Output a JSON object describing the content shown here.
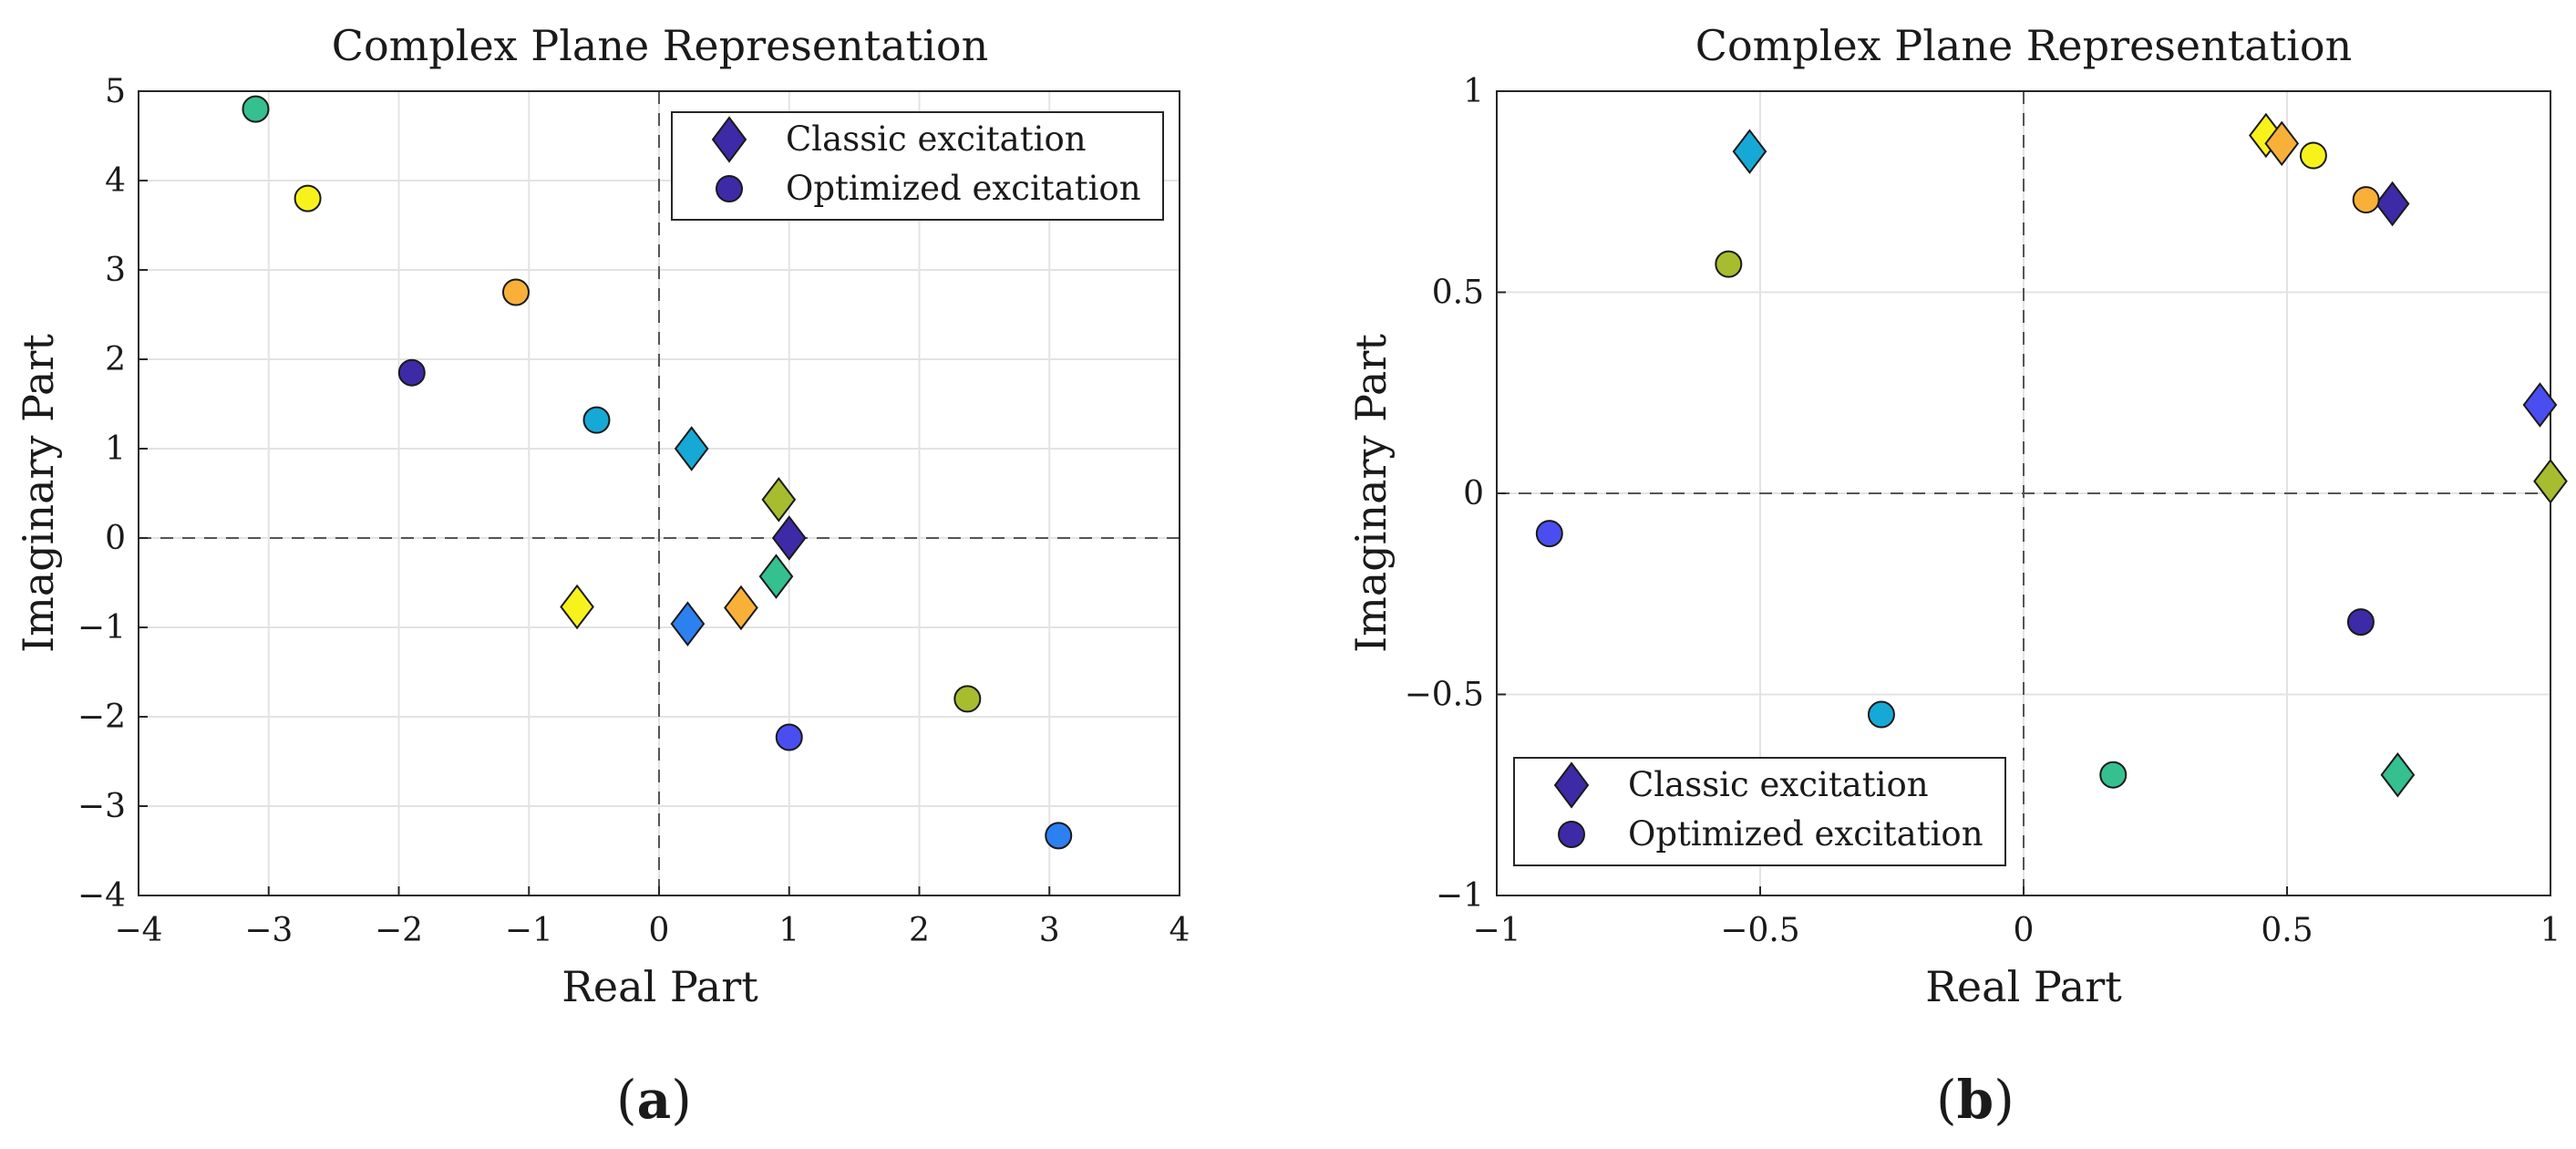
{
  "chart_data": [
    {
      "type": "scatter",
      "panel_label": "a",
      "title": "Complex Plane Representation",
      "xlabel": "Real Part",
      "ylabel": "Imaginary Part",
      "xlim": [
        -4,
        4
      ],
      "ylim": [
        -4,
        5
      ],
      "xticks": [
        -4,
        -3,
        -2,
        -1,
        0,
        1,
        2,
        3,
        4
      ],
      "yticks": [
        -4,
        -3,
        -2,
        -1,
        0,
        1,
        2,
        3,
        4,
        5
      ],
      "xtick_labels": [
        "−4",
        "−3",
        "−2",
        "−1",
        "0",
        "1",
        "2",
        "3",
        "4"
      ],
      "ytick_labels": [
        "−4",
        "−3",
        "−2",
        "−1",
        "0",
        "1",
        "2",
        "3",
        "4",
        "5"
      ],
      "grid": true,
      "legend_position": "top-right",
      "legend": [
        "Classic excitation",
        "Optimized excitation"
      ],
      "series": [
        {
          "name": "Classic excitation",
          "marker": "diamond",
          "points": [
            {
              "x": 1.0,
              "y": 0.0,
              "color": "#3d2aa6"
            },
            {
              "x": 0.25,
              "y": 1.0,
              "color": "#17a9d6"
            },
            {
              "x": 0.92,
              "y": 0.43,
              "color": "#a8bc30"
            },
            {
              "x": 0.9,
              "y": -0.43,
              "color": "#34c08f"
            },
            {
              "x": 0.63,
              "y": -0.78,
              "color": "#f9b038"
            },
            {
              "x": 0.22,
              "y": -0.96,
              "color": "#2c80f0"
            },
            {
              "x": -0.63,
              "y": -0.77,
              "color": "#f8f21c"
            }
          ]
        },
        {
          "name": "Optimized excitation",
          "marker": "circle",
          "points": [
            {
              "x": -3.1,
              "y": 4.8,
              "color": "#34c08f"
            },
            {
              "x": -2.7,
              "y": 3.8,
              "color": "#f8f21c"
            },
            {
              "x": -1.1,
              "y": 2.75,
              "color": "#f9b038"
            },
            {
              "x": -1.9,
              "y": 1.85,
              "color": "#3d2aa6"
            },
            {
              "x": -0.48,
              "y": 1.32,
              "color": "#17a9d6"
            },
            {
              "x": 2.37,
              "y": -1.8,
              "color": "#a8bc30"
            },
            {
              "x": 1.0,
              "y": -2.23,
              "color": "#4a4ef0"
            },
            {
              "x": 3.07,
              "y": -3.33,
              "color": "#2c80f0"
            }
          ]
        }
      ]
    },
    {
      "type": "scatter",
      "panel_label": "b",
      "title": "Complex Plane Representation",
      "xlabel": "Real Part",
      "ylabel": "Imaginary Part",
      "xlim": [
        -1,
        1
      ],
      "ylim": [
        -1,
        1
      ],
      "xticks": [
        -1,
        -0.5,
        0,
        0.5,
        1
      ],
      "yticks": [
        -1,
        -0.5,
        0,
        0.5,
        1
      ],
      "xtick_labels": [
        "−1",
        "−0.5",
        "0",
        "0.5",
        "1"
      ],
      "ytick_labels": [
        "−1",
        "−0.5",
        "0",
        "0.5",
        "1"
      ],
      "grid": true,
      "legend_position": "bottom-left",
      "legend": [
        "Classic excitation",
        "Optimized excitation"
      ],
      "series": [
        {
          "name": "Classic excitation",
          "marker": "diamond",
          "points": [
            {
              "x": -0.52,
              "y": 0.85,
              "color": "#17a9d6"
            },
            {
              "x": 0.46,
              "y": 0.89,
              "color": "#f8f21c"
            },
            {
              "x": 0.49,
              "y": 0.87,
              "color": "#f9b038"
            },
            {
              "x": 0.7,
              "y": 0.72,
              "color": "#3d2aa6"
            },
            {
              "x": 0.98,
              "y": 0.22,
              "color": "#4a4ef0"
            },
            {
              "x": 1.0,
              "y": 0.03,
              "color": "#a8bc30"
            },
            {
              "x": 0.71,
              "y": -0.7,
              "color": "#34c08f"
            }
          ]
        },
        {
          "name": "Optimized excitation",
          "marker": "circle",
          "points": [
            {
              "x": -0.56,
              "y": 0.57,
              "color": "#a8bc30"
            },
            {
              "x": 0.55,
              "y": 0.84,
              "color": "#f8f21c"
            },
            {
              "x": 0.65,
              "y": 0.73,
              "color": "#f9b038"
            },
            {
              "x": -0.9,
              "y": -0.1,
              "color": "#4a4ef0"
            },
            {
              "x": 0.64,
              "y": -0.32,
              "color": "#3d2aa6"
            },
            {
              "x": -0.27,
              "y": -0.55,
              "color": "#17a9d6"
            },
            {
              "x": 0.17,
              "y": -0.7,
              "color": "#34c08f"
            }
          ]
        }
      ]
    }
  ],
  "legend_swatch_color": "#3d2aa6"
}
